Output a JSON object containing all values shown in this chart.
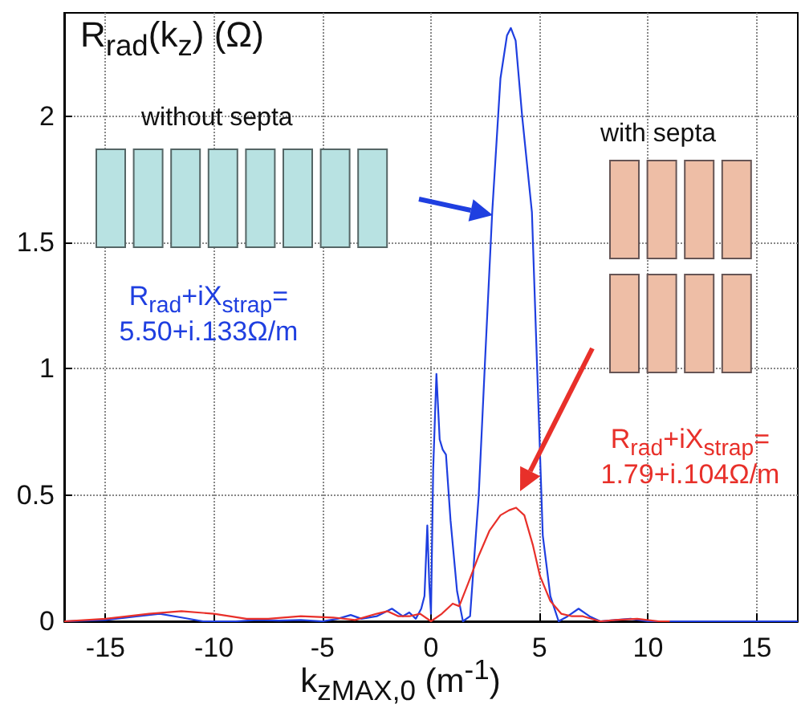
{
  "chart_data": {
    "type": "line",
    "ylabel": "R$_{rad}$(k$_{z}$) (Ω)",
    "xlabel": "k$_{zMAX,0}$ (m$^{-1}$)",
    "annotations": [
      "without septa",
      "with septa",
      "R$_{rad}$+iX$_{strap}$=\n5.50+i.133Ω/m",
      "R$_{rad}$+iX$_{strap}$=\n1.79+i.104Ω/m"
    ],
    "series": [
      {
        "color": "#1f3fe0",
        "x": [
          -16.9,
          -15,
          -13.5,
          -12.5,
          -11.5,
          -10.5,
          -9,
          -8,
          -7,
          -6,
          -5,
          -4.3,
          -3.7,
          -3.2,
          -2.5,
          -1.8,
          -1.3,
          -1,
          -0.7,
          -0.45,
          -0.3,
          -0.17,
          -0.08,
          0,
          0.1,
          0.25,
          0.4,
          0.54,
          0.69,
          0.9,
          1.2,
          1.47,
          1.8,
          2.2,
          2.5,
          2.82,
          3.2,
          3.5,
          3.68,
          3.9,
          4.2,
          4.65,
          5.15,
          5.5,
          5.88,
          6.3,
          6.8,
          7.3,
          7.8,
          8.5,
          9.2,
          10,
          12,
          14,
          16.9
        ],
        "values": [
          0,
          0.005,
          0.02,
          0.03,
          0.015,
          0,
          0,
          0.005,
          0.003,
          0.005,
          0,
          0.01,
          0.025,
          0.01,
          0.02,
          0.05,
          0.02,
          0.035,
          0.01,
          0.05,
          0.1,
          0.38,
          0.15,
          0.03,
          0.6,
          0.98,
          0.72,
          0.68,
          0.66,
          0.4,
          0.12,
          0,
          0.02,
          0.5,
          1.05,
          1.62,
          2.15,
          2.32,
          2.35,
          2.3,
          2.0,
          1.62,
          0.34,
          0.1,
          0,
          0.02,
          0.05,
          0.02,
          0,
          0.005,
          0.01,
          0,
          0,
          0,
          0
        ]
      },
      {
        "color": "#e8302a",
        "x": [
          -16.9,
          -15,
          -13,
          -11.5,
          -10,
          -8.5,
          -7.5,
          -6,
          -4.5,
          -3.5,
          -2.5,
          -2,
          -1.5,
          -1,
          -0.5,
          0,
          0.5,
          1,
          1.3,
          1.71,
          2.2,
          2.7,
          3.2,
          3.6,
          3.92,
          4.3,
          4.7,
          5.02,
          5.5,
          6,
          6.5,
          7,
          7.8,
          8.5,
          9.5,
          10.5,
          11
        ],
        "values": [
          0,
          0.01,
          0.03,
          0.04,
          0.03,
          0.01,
          0.01,
          0.02,
          0.015,
          0.005,
          0.03,
          0.04,
          0.02,
          0.02,
          0.03,
          0,
          0.03,
          0.07,
          0.06,
          0.15,
          0.26,
          0.36,
          0.42,
          0.44,
          0.45,
          0.42,
          0.3,
          0.18,
          0.08,
          0.03,
          0.02,
          0.02,
          0,
          0.005,
          0.01,
          0,
          0
        ]
      }
    ],
    "xlim": [
      -16.9,
      16.9
    ],
    "xticks": [
      -15,
      -10,
      -5,
      0,
      5,
      10,
      15
    ],
    "ylim": [
      0,
      2.41
    ],
    "yticks": [
      0,
      0.5,
      1,
      1.5,
      2
    ],
    "grid": true,
    "marker": "none",
    "line_style": "solid"
  }
}
